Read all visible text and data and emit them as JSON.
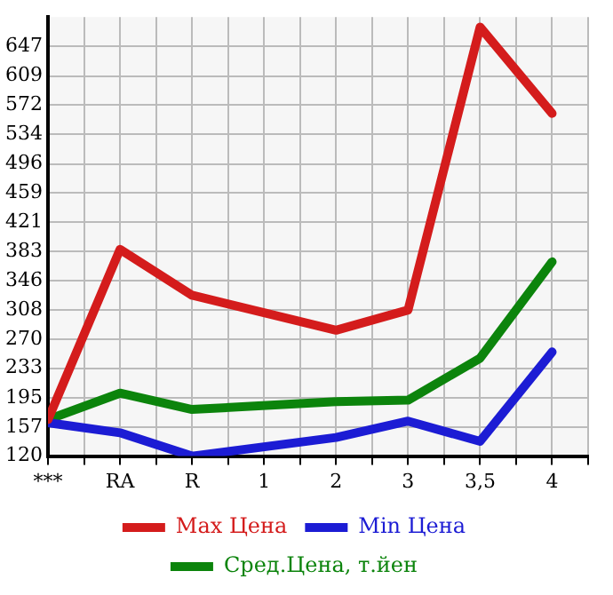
{
  "chart_data": {
    "type": "line",
    "categories": [
      "***",
      "RA",
      "R",
      "1",
      "2",
      "3",
      "3,5",
      "4"
    ],
    "series": [
      {
        "name": "Max Цена",
        "color": "#d41c1c",
        "values": [
          167,
          386,
          327,
          null,
          282,
          308,
          672,
          561
        ]
      },
      {
        "name": "Min Цена",
        "color": "#1c1cd4",
        "values": [
          163,
          150,
          120,
          null,
          144,
          165,
          139,
          254
        ]
      },
      {
        "name": "Сред.Цена, т.йен",
        "color": "#0c840c",
        "values": [
          167,
          201,
          180,
          null,
          190,
          192,
          246,
          370
        ]
      }
    ],
    "ylim": [
      120,
      685
    ],
    "yticks": [
      120,
      157,
      195,
      233,
      270,
      308,
      346,
      383,
      421,
      459,
      496,
      534,
      572,
      609,
      647
    ],
    "grid": true,
    "legend": "bottom",
    "marker": "none",
    "line_style": "solid"
  }
}
